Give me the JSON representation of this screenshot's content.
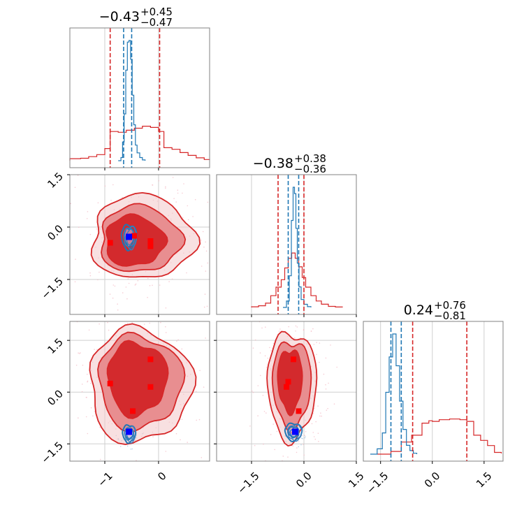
{
  "colors": {
    "red": "#d62728",
    "red_mid": "#e88e90",
    "red_dark": "#d32a2d",
    "blue": "#1f77b4",
    "marker_blue": "#0000ff",
    "marker_red": "#ff0000",
    "grid": "#cfcfcf"
  },
  "chart_data": {
    "type": "corner",
    "parameters": [
      {
        "title": {
          "value": "−0.43",
          "plus": "+0.45",
          "minus": "−0.47"
        },
        "range": [
          -1.65,
          0.95
        ],
        "ticks": [
          -1,
          0
        ],
        "tick_labels": [
          "−1",
          "0"
        ],
        "red_lines": [
          -0.9,
          0.02
        ],
        "blue_lines": [
          -0.65,
          -0.5
        ]
      },
      {
        "title": {
          "value": "−0.38",
          "plus": "+0.38",
          "minus": "−0.36"
        },
        "range": [
          -2.5,
          1.5
        ],
        "ticks": [
          -1.5,
          0.0,
          1.5
        ],
        "tick_labels": [
          "−1.5",
          "0.0",
          "1.5"
        ],
        "red_lines": [
          -0.74,
          0.0
        ],
        "blue_lines": [
          -0.45,
          -0.15
        ]
      },
      {
        "title": {
          "value": "0.24",
          "plus": "+0.76",
          "minus": "−0.81"
        },
        "range": [
          -2.0,
          2.05
        ],
        "ticks": [
          -1.5,
          0.0,
          1.5
        ],
        "tick_labels": [
          "−1.5",
          "0.0",
          "1.5"
        ],
        "red_lines": [
          -0.57,
          1.0
        ],
        "blue_lines": [
          -1.2,
          -0.9
        ]
      }
    ],
    "diag_hist": [
      {
        "red": [
          [
            -1.65,
            0.05
          ],
          [
            -1.45,
            0.06
          ],
          [
            -1.3,
            0.1
          ],
          [
            -1.15,
            0.15
          ],
          [
            -1.0,
            0.3
          ],
          [
            -0.9,
            0.72
          ],
          [
            -0.75,
            0.7
          ],
          [
            -0.6,
            0.75
          ],
          [
            -0.45,
            0.8
          ],
          [
            -0.3,
            0.85
          ],
          [
            -0.15,
            0.82
          ],
          [
            0.0,
            0.72
          ],
          [
            0.1,
            0.32
          ],
          [
            0.25,
            0.28
          ],
          [
            0.4,
            0.2
          ],
          [
            0.55,
            0.13
          ],
          [
            0.7,
            0.07
          ],
          [
            0.85,
            0.03
          ],
          [
            0.95,
            0.02
          ]
        ],
        "blue": [
          [
            -0.75,
            0.0
          ],
          [
            -0.7,
            0.2
          ],
          [
            -0.67,
            1.2
          ],
          [
            -0.64,
            3.0
          ],
          [
            -0.61,
            5.8
          ],
          [
            -0.58,
            7.6
          ],
          [
            -0.55,
            7.7
          ],
          [
            -0.52,
            6.5
          ],
          [
            -0.49,
            4.2
          ],
          [
            -0.46,
            2.3
          ],
          [
            -0.43,
            1.0
          ],
          [
            -0.4,
            0.5
          ],
          [
            -0.35,
            0.2
          ],
          [
            -0.3,
            0.05
          ],
          [
            -0.25,
            0.0
          ]
        ]
      },
      {
        "red": [
          [
            -1.5,
            0.03
          ],
          [
            -1.3,
            0.08
          ],
          [
            -1.1,
            0.2
          ],
          [
            -0.95,
            0.55
          ],
          [
            -0.8,
            0.95
          ],
          [
            -0.65,
            1.3
          ],
          [
            -0.55,
            1.85
          ],
          [
            -0.45,
            2.3
          ],
          [
            -0.35,
            2.55
          ],
          [
            -0.25,
            2.3
          ],
          [
            -0.15,
            1.9
          ],
          [
            -0.05,
            1.4
          ],
          [
            0.05,
            0.95
          ],
          [
            0.2,
            0.55
          ],
          [
            0.35,
            0.3
          ],
          [
            0.5,
            0.15
          ],
          [
            0.7,
            0.05
          ],
          [
            0.9,
            0.02
          ],
          [
            1.1,
            0.0
          ]
        ],
        "blue": [
          [
            -0.6,
            0.0
          ],
          [
            -0.5,
            0.4
          ],
          [
            -0.42,
            2.0
          ],
          [
            -0.36,
            5.5
          ],
          [
            -0.31,
            7.6
          ],
          [
            -0.27,
            7.2
          ],
          [
            -0.23,
            5.0
          ],
          [
            -0.19,
            2.8
          ],
          [
            -0.14,
            1.3
          ],
          [
            -0.08,
            0.5
          ],
          [
            0.0,
            0.2
          ],
          [
            0.1,
            0.05
          ],
          [
            0.2,
            0.0
          ]
        ]
      },
      {
        "red": [
          [
            -1.6,
            0.0
          ],
          [
            -1.2,
            0.08
          ],
          [
            -0.9,
            0.35
          ],
          [
            -0.6,
            0.55
          ],
          [
            -0.3,
            0.9
          ],
          [
            -0.1,
            0.97
          ],
          [
            0.0,
            0.95
          ],
          [
            0.2,
            1.0
          ],
          [
            0.5,
            1.02
          ],
          [
            0.8,
            1.0
          ],
          [
            1.0,
            0.95
          ],
          [
            1.2,
            0.55
          ],
          [
            1.4,
            0.4
          ],
          [
            1.6,
            0.25
          ],
          [
            1.8,
            0.05
          ],
          [
            2.0,
            0.02
          ]
        ],
        "blue": [
          [
            -1.8,
            0.0
          ],
          [
            -1.6,
            0.3
          ],
          [
            -1.45,
            1.2
          ],
          [
            -1.35,
            3.5
          ],
          [
            -1.25,
            5.5
          ],
          [
            -1.15,
            6.8
          ],
          [
            -1.05,
            5.0
          ],
          [
            -0.95,
            3.0
          ],
          [
            -0.85,
            1.4
          ],
          [
            -0.75,
            0.5
          ],
          [
            -0.65,
            0.2
          ],
          [
            -0.55,
            0.05
          ],
          [
            -0.45,
            0.0
          ]
        ]
      }
    ],
    "pairs": [
      {
        "x_param": 0,
        "y_param": 1,
        "red_blobs": [
          [
            -0.45,
            -0.4,
            0.55,
            0.72,
            1.3
          ],
          [
            -0.35,
            -0.35,
            0.75,
            0.95,
            1.05
          ],
          [
            -0.3,
            -0.3,
            0.95,
            1.2,
            0.7
          ]
        ],
        "blue_blobs": [
          [
            -0.55,
            -0.28,
            0.09,
            0.25,
            1.0
          ],
          [
            -0.55,
            -0.28,
            0.14,
            0.35,
            0.55
          ]
        ],
        "red_markers": [
          [
            -0.9,
            -0.45
          ],
          [
            -0.15,
            -0.4
          ],
          [
            -0.15,
            -0.55
          ],
          [
            -0.45,
            -0.25
          ]
        ],
        "blue_markers": [
          [
            -0.55,
            -0.28
          ]
        ]
      },
      {
        "x_param": 0,
        "y_param": 2,
        "red_blobs": [
          [
            -0.4,
            0.4,
            0.55,
            1.05,
            1.3
          ],
          [
            -0.35,
            0.3,
            0.78,
            1.35,
            1.0
          ],
          [
            -0.35,
            0.2,
            0.95,
            1.65,
            0.65
          ]
        ],
        "blue_blobs": [
          [
            -0.55,
            -1.2,
            0.08,
            0.15,
            1.0
          ],
          [
            -0.55,
            -1.2,
            0.12,
            0.25,
            0.55
          ]
        ],
        "red_markers": [
          [
            -0.9,
            0.25
          ],
          [
            -0.15,
            0.95
          ],
          [
            -0.15,
            0.15
          ],
          [
            -0.48,
            -0.55
          ]
        ],
        "blue_markers": [
          [
            -0.55,
            -1.15
          ]
        ]
      },
      {
        "x_param": 1,
        "y_param": 2,
        "red_blobs": [
          [
            -0.4,
            0.35,
            0.35,
            0.9,
            1.3
          ],
          [
            -0.35,
            0.25,
            0.55,
            1.25,
            1.0
          ],
          [
            -0.35,
            0.2,
            0.7,
            1.55,
            0.65
          ]
        ],
        "blue_blobs": [
          [
            -0.3,
            -1.15,
            0.15,
            0.15,
            1.0
          ],
          [
            -0.3,
            -1.15,
            0.24,
            0.25,
            0.55
          ]
        ],
        "red_markers": [
          [
            -0.5,
            0.15
          ],
          [
            -0.45,
            0.3
          ],
          [
            -0.3,
            0.95
          ],
          [
            -0.15,
            -0.55
          ]
        ],
        "blue_markers": [
          [
            -0.25,
            -1.15
          ]
        ]
      }
    ]
  }
}
